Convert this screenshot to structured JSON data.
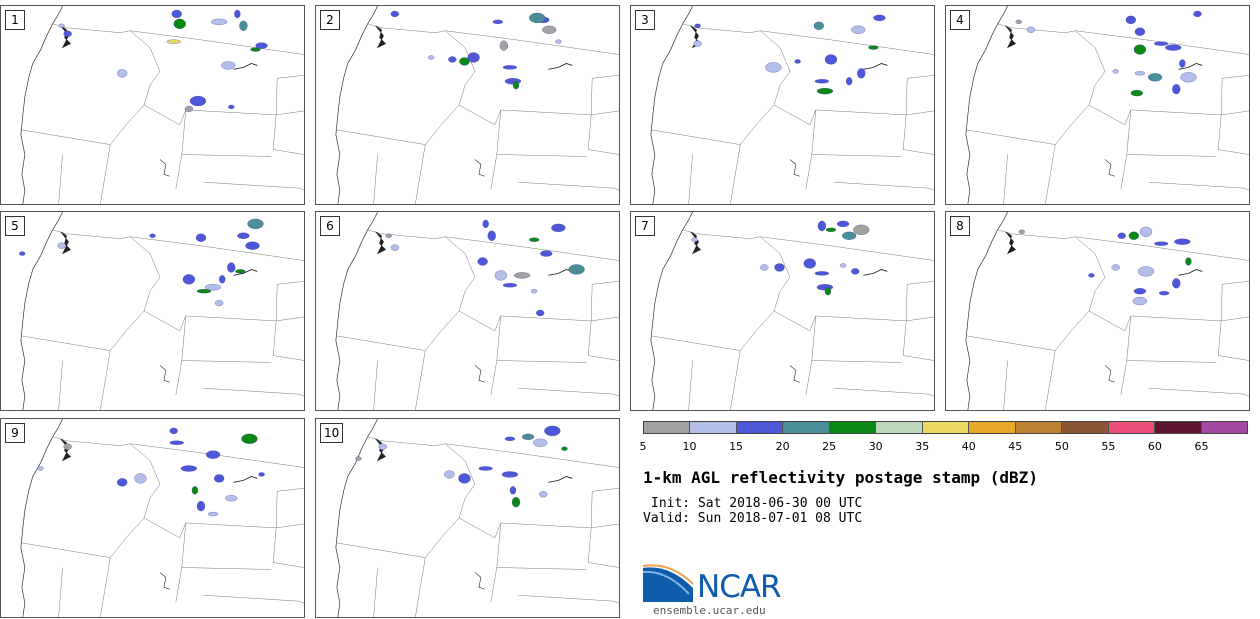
{
  "colors": {
    "scale": [
      "#a2a2a2",
      "#b3bee9",
      "#4d57d7",
      "#4a8f98",
      "#098813",
      "#bcd8bc",
      "#ecd962",
      "#e8a82a",
      "#b98130",
      "#8c5538",
      "#ea4f7a",
      "#5e1531",
      "#a348a4"
    ],
    "map_border": "#555555",
    "logo_blue": "#0e5cab"
  },
  "panels": [
    {
      "label": "1",
      "cells": [
        [
          0.2,
          0.1,
          "#b3bee9"
        ],
        [
          0.22,
          0.14,
          "#4d57d7"
        ],
        [
          0.58,
          0.04,
          "#4d57d7"
        ],
        [
          0.59,
          0.09,
          "#098813"
        ],
        [
          0.57,
          0.18,
          "#ecd962"
        ],
        [
          0.72,
          0.08,
          "#b3bee9"
        ],
        [
          0.78,
          0.04,
          "#4d57d7"
        ],
        [
          0.8,
          0.1,
          "#4a8f98"
        ],
        [
          0.84,
          0.22,
          "#098813"
        ],
        [
          0.86,
          0.2,
          "#4d57d7"
        ],
        [
          0.75,
          0.3,
          "#b3bee9"
        ],
        [
          0.65,
          0.48,
          "#4d57d7"
        ],
        [
          0.76,
          0.51,
          "#4d57d7"
        ],
        [
          0.62,
          0.52,
          "#a2a2a2"
        ],
        [
          0.4,
          0.34,
          "#b3bee9"
        ]
      ]
    },
    {
      "label": "2",
      "cells": [
        [
          0.38,
          0.26,
          "#b3bee9"
        ],
        [
          0.45,
          0.27,
          "#4d57d7"
        ],
        [
          0.49,
          0.28,
          "#098813"
        ],
        [
          0.52,
          0.26,
          "#4d57d7"
        ],
        [
          0.64,
          0.31,
          "#4d57d7"
        ],
        [
          0.65,
          0.38,
          "#4d57d7"
        ],
        [
          0.66,
          0.4,
          "#098813"
        ],
        [
          0.62,
          0.2,
          "#a2a2a2"
        ],
        [
          0.6,
          0.08,
          "#4d57d7"
        ],
        [
          0.75,
          0.07,
          "#4d57d7"
        ],
        [
          0.77,
          0.12,
          "#a2a2a2"
        ],
        [
          0.73,
          0.06,
          "#4a8f98"
        ],
        [
          0.8,
          0.18,
          "#b3bee9"
        ],
        [
          0.26,
          0.04,
          "#4d57d7"
        ]
      ]
    },
    {
      "label": "3",
      "cells": [
        [
          0.22,
          0.1,
          "#4d57d7"
        ],
        [
          0.22,
          0.19,
          "#b3bee9"
        ],
        [
          0.62,
          0.1,
          "#4a8f98"
        ],
        [
          0.66,
          0.27,
          "#4d57d7"
        ],
        [
          0.63,
          0.38,
          "#4d57d7"
        ],
        [
          0.64,
          0.43,
          "#098813"
        ],
        [
          0.72,
          0.38,
          "#4d57d7"
        ],
        [
          0.76,
          0.34,
          "#4d57d7"
        ],
        [
          0.8,
          0.21,
          "#098813"
        ],
        [
          0.82,
          0.06,
          "#4d57d7"
        ],
        [
          0.75,
          0.12,
          "#b3bee9"
        ],
        [
          0.47,
          0.31,
          "#b3bee9"
        ],
        [
          0.55,
          0.28,
          "#4d57d7"
        ]
      ]
    },
    {
      "label": "4",
      "cells": [
        [
          0.24,
          0.08,
          "#a2a2a2"
        ],
        [
          0.28,
          0.12,
          "#b3bee9"
        ],
        [
          0.64,
          0.13,
          "#4d57d7"
        ],
        [
          0.64,
          0.22,
          "#098813"
        ],
        [
          0.71,
          0.19,
          "#4d57d7"
        ],
        [
          0.75,
          0.21,
          "#4d57d7"
        ],
        [
          0.78,
          0.29,
          "#4d57d7"
        ],
        [
          0.76,
          0.42,
          "#4d57d7"
        ],
        [
          0.64,
          0.34,
          "#b3bee9"
        ],
        [
          0.63,
          0.44,
          "#098813"
        ],
        [
          0.69,
          0.36,
          "#4a8f98"
        ],
        [
          0.8,
          0.36,
          "#b3bee9"
        ],
        [
          0.56,
          0.33,
          "#b3bee9"
        ],
        [
          0.83,
          0.04,
          "#4d57d7"
        ],
        [
          0.61,
          0.07,
          "#4d57d7"
        ]
      ]
    },
    {
      "label": "5",
      "cells": [
        [
          0.07,
          0.21,
          "#4d57d7"
        ],
        [
          0.2,
          0.17,
          "#b3bee9"
        ],
        [
          0.66,
          0.13,
          "#4d57d7"
        ],
        [
          0.62,
          0.34,
          "#4d57d7"
        ],
        [
          0.67,
          0.4,
          "#098813"
        ],
        [
          0.7,
          0.38,
          "#b3bee9"
        ],
        [
          0.73,
          0.34,
          "#4d57d7"
        ],
        [
          0.76,
          0.28,
          "#4d57d7"
        ],
        [
          0.79,
          0.3,
          "#098813"
        ],
        [
          0.8,
          0.12,
          "#4d57d7"
        ],
        [
          0.83,
          0.17,
          "#4d57d7"
        ],
        [
          0.84,
          0.06,
          "#4a8f98"
        ],
        [
          0.5,
          0.12,
          "#4d57d7"
        ],
        [
          0.72,
          0.46,
          "#b3bee9"
        ]
      ]
    },
    {
      "label": "6",
      "cells": [
        [
          0.24,
          0.12,
          "#a2a2a2"
        ],
        [
          0.26,
          0.18,
          "#b3bee9"
        ],
        [
          0.55,
          0.25,
          "#4d57d7"
        ],
        [
          0.61,
          0.32,
          "#b3bee9"
        ],
        [
          0.64,
          0.37,
          "#4d57d7"
        ],
        [
          0.68,
          0.32,
          "#a2a2a2"
        ],
        [
          0.56,
          0.06,
          "#4d57d7"
        ],
        [
          0.58,
          0.12,
          "#4d57d7"
        ],
        [
          0.72,
          0.14,
          "#098813"
        ],
        [
          0.76,
          0.21,
          "#4d57d7"
        ],
        [
          0.8,
          0.08,
          "#4d57d7"
        ],
        [
          0.86,
          0.29,
          "#4a8f98"
        ],
        [
          0.72,
          0.4,
          "#b3bee9"
        ],
        [
          0.74,
          0.51,
          "#4d57d7"
        ]
      ]
    },
    {
      "label": "7",
      "cells": [
        [
          0.21,
          0.14,
          "#b3bee9"
        ],
        [
          0.44,
          0.28,
          "#b3bee9"
        ],
        [
          0.49,
          0.28,
          "#4d57d7"
        ],
        [
          0.59,
          0.26,
          "#4d57d7"
        ],
        [
          0.63,
          0.31,
          "#4d57d7"
        ],
        [
          0.64,
          0.38,
          "#4d57d7"
        ],
        [
          0.65,
          0.4,
          "#098813"
        ],
        [
          0.63,
          0.07,
          "#4d57d7"
        ],
        [
          0.66,
          0.09,
          "#098813"
        ],
        [
          0.7,
          0.06,
          "#4d57d7"
        ],
        [
          0.72,
          0.12,
          "#4a8f98"
        ],
        [
          0.76,
          0.09,
          "#a2a2a2"
        ],
        [
          0.7,
          0.27,
          "#b3bee9"
        ],
        [
          0.74,
          0.3,
          "#4d57d7"
        ]
      ]
    },
    {
      "label": "8",
      "cells": [
        [
          0.25,
          0.1,
          "#a2a2a2"
        ],
        [
          0.58,
          0.12,
          "#4d57d7"
        ],
        [
          0.62,
          0.12,
          "#098813"
        ],
        [
          0.66,
          0.1,
          "#b3bee9"
        ],
        [
          0.71,
          0.16,
          "#4d57d7"
        ],
        [
          0.78,
          0.15,
          "#4d57d7"
        ],
        [
          0.8,
          0.25,
          "#098813"
        ],
        [
          0.76,
          0.36,
          "#4d57d7"
        ],
        [
          0.72,
          0.41,
          "#4d57d7"
        ],
        [
          0.64,
          0.4,
          "#4d57d7"
        ],
        [
          0.64,
          0.45,
          "#b3bee9"
        ],
        [
          0.66,
          0.3,
          "#b3bee9"
        ],
        [
          0.48,
          0.32,
          "#4d57d7"
        ],
        [
          0.56,
          0.28,
          "#b3bee9"
        ]
      ]
    },
    {
      "label": "9",
      "cells": [
        [
          0.13,
          0.25,
          "#b3bee9"
        ],
        [
          0.22,
          0.14,
          "#a2a2a2"
        ],
        [
          0.4,
          0.32,
          "#4d57d7"
        ],
        [
          0.46,
          0.3,
          "#b3bee9"
        ],
        [
          0.58,
          0.12,
          "#4d57d7"
        ],
        [
          0.62,
          0.25,
          "#4d57d7"
        ],
        [
          0.64,
          0.36,
          "#098813"
        ],
        [
          0.66,
          0.44,
          "#4d57d7"
        ],
        [
          0.7,
          0.48,
          "#b3bee9"
        ],
        [
          0.76,
          0.4,
          "#b3bee9"
        ],
        [
          0.7,
          0.18,
          "#4d57d7"
        ],
        [
          0.82,
          0.1,
          "#098813"
        ],
        [
          0.86,
          0.28,
          "#4d57d7"
        ],
        [
          0.57,
          0.06,
          "#4d57d7"
        ],
        [
          0.72,
          0.3,
          "#4d57d7"
        ]
      ]
    },
    {
      "label": "10",
      "cells": [
        [
          0.14,
          0.2,
          "#a2a2a2"
        ],
        [
          0.22,
          0.14,
          "#b3bee9"
        ],
        [
          0.44,
          0.28,
          "#b3bee9"
        ],
        [
          0.49,
          0.3,
          "#4d57d7"
        ],
        [
          0.56,
          0.25,
          "#4d57d7"
        ],
        [
          0.64,
          0.28,
          "#4d57d7"
        ],
        [
          0.65,
          0.36,
          "#4d57d7"
        ],
        [
          0.66,
          0.42,
          "#098813"
        ],
        [
          0.64,
          0.1,
          "#4d57d7"
        ],
        [
          0.7,
          0.09,
          "#4a8f98"
        ],
        [
          0.74,
          0.12,
          "#b3bee9"
        ],
        [
          0.78,
          0.06,
          "#4d57d7"
        ],
        [
          0.82,
          0.15,
          "#098813"
        ],
        [
          0.75,
          0.38,
          "#b3bee9"
        ]
      ]
    }
  ],
  "colorbar": {
    "ticks": [
      "5",
      "10",
      "15",
      "20",
      "25",
      "30",
      "35",
      "40",
      "45",
      "50",
      "55",
      "60",
      "65"
    ]
  },
  "product_title": "1-km AGL reflectivity postage stamp (dBZ)",
  "init_text": "Init: Sat 2018-06-30 00 UTC",
  "valid_text": "Valid: Sun 2018-07-01 08 UTC",
  "logo_text": "NCAR",
  "website": "ensemble.ucar.edu"
}
